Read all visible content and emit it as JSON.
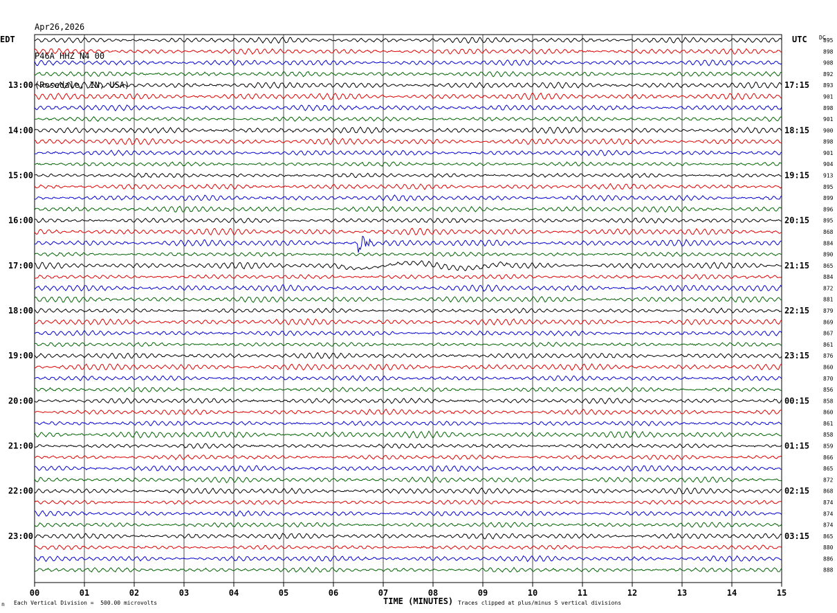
{
  "header": {
    "date": "Apr26,2026",
    "station": "P46A HHZ N4 00",
    "location": "(Rosedale, IN, USA)"
  },
  "left_tz": "EDT",
  "right_tz": "UTC",
  "dc_label": "DC",
  "footer": {
    "scale_note": "Each Vertical Division =  500.00 microvolts",
    "clip_note": "Traces clipped at plus/minus 5 vertical divisions",
    "corner_mark": "n"
  },
  "colors": {
    "line1": "#000000",
    "line2": "#e00000",
    "line3": "#0000d0",
    "line4": "#006400",
    "grid": "#000000"
  },
  "chart_data": {
    "type": "line",
    "title": "Apr26,2026 P46A HHZ N4 00 (Rosedale, IN, USA)",
    "xlabel": "TIME (MINUTES)",
    "xlim": [
      0,
      15
    ],
    "x_ticks": [
      "00",
      "01",
      "02",
      "03",
      "04",
      "05",
      "06",
      "07",
      "08",
      "09",
      "10",
      "11",
      "12",
      "13",
      "14",
      "15"
    ],
    "row_count": 48,
    "left_time_labels": [
      {
        "row": 4,
        "label": "13:00"
      },
      {
        "row": 8,
        "label": "14:00"
      },
      {
        "row": 12,
        "label": "15:00"
      },
      {
        "row": 16,
        "label": "16:00"
      },
      {
        "row": 20,
        "label": "17:00"
      },
      {
        "row": 24,
        "label": "18:00"
      },
      {
        "row": 28,
        "label": "19:00"
      },
      {
        "row": 32,
        "label": "20:00"
      },
      {
        "row": 36,
        "label": "21:00"
      },
      {
        "row": 40,
        "label": "22:00"
      },
      {
        "row": 44,
        "label": "23:00"
      }
    ],
    "right_time_labels": [
      {
        "row": 4,
        "label": "17:15"
      },
      {
        "row": 8,
        "label": "18:15"
      },
      {
        "row": 12,
        "label": "19:15"
      },
      {
        "row": 16,
        "label": "20:15"
      },
      {
        "row": 20,
        "label": "21:15"
      },
      {
        "row": 24,
        "label": "22:15"
      },
      {
        "row": 28,
        "label": "23:15"
      },
      {
        "row": 32,
        "label": "00:15"
      },
      {
        "row": 36,
        "label": "01:15"
      },
      {
        "row": 40,
        "label": "02:15"
      },
      {
        "row": 44,
        "label": "03:15"
      }
    ],
    "dc_offsets": [
      895,
      898,
      908,
      892,
      893,
      901,
      898,
      901,
      900,
      898,
      901,
      904,
      913,
      895,
      899,
      896,
      895,
      868,
      884,
      890,
      865,
      884,
      872,
      881,
      879,
      869,
      867,
      861,
      876,
      860,
      870,
      856,
      858,
      860,
      861,
      858,
      859,
      866,
      865,
      872,
      868,
      874,
      874,
      874,
      865,
      880,
      886,
      888
    ],
    "trace_color_cycle": [
      "black",
      "red",
      "blue",
      "green"
    ],
    "events": [
      {
        "row": 18,
        "minute": 6.5,
        "description": "spike"
      }
    ]
  }
}
